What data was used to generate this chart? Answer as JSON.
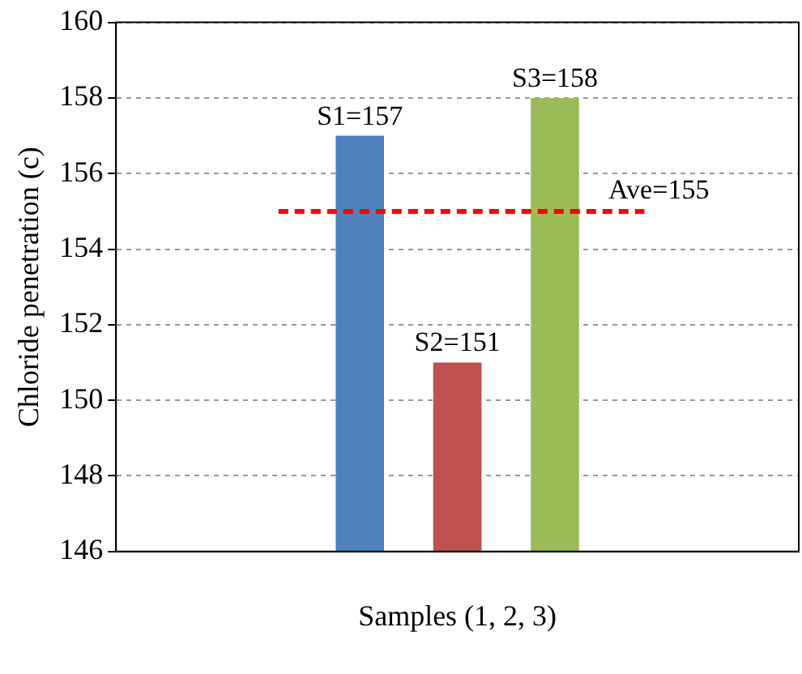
{
  "chart_data": {
    "type": "bar",
    "xlabel": "Samples (1, 2, 3)",
    "ylabel": "Chloride penetration (c)",
    "categories": [
      null,
      null,
      null,
      null,
      null,
      null,
      null
    ],
    "values": [
      null,
      null,
      157,
      151,
      158,
      null,
      null
    ],
    "colors": [
      "#4f81bd",
      "#4f81bd",
      "#4f81bd",
      "#c0504d",
      "#9bbb59",
      "#4f81bd",
      "#4f81bd"
    ],
    "value_labels": [
      null,
      null,
      "S1=157",
      "S2=151",
      "S3=158",
      null,
      null
    ],
    "ylim": [
      146,
      160
    ],
    "yticks": [
      146,
      148,
      150,
      152,
      154,
      156,
      158,
      160
    ],
    "grid": "y",
    "ref_lines": [
      {
        "axis": "y",
        "value": 155,
        "label": "Ave=155",
        "color": "#ff0000",
        "line_style": "dashed"
      }
    ]
  }
}
